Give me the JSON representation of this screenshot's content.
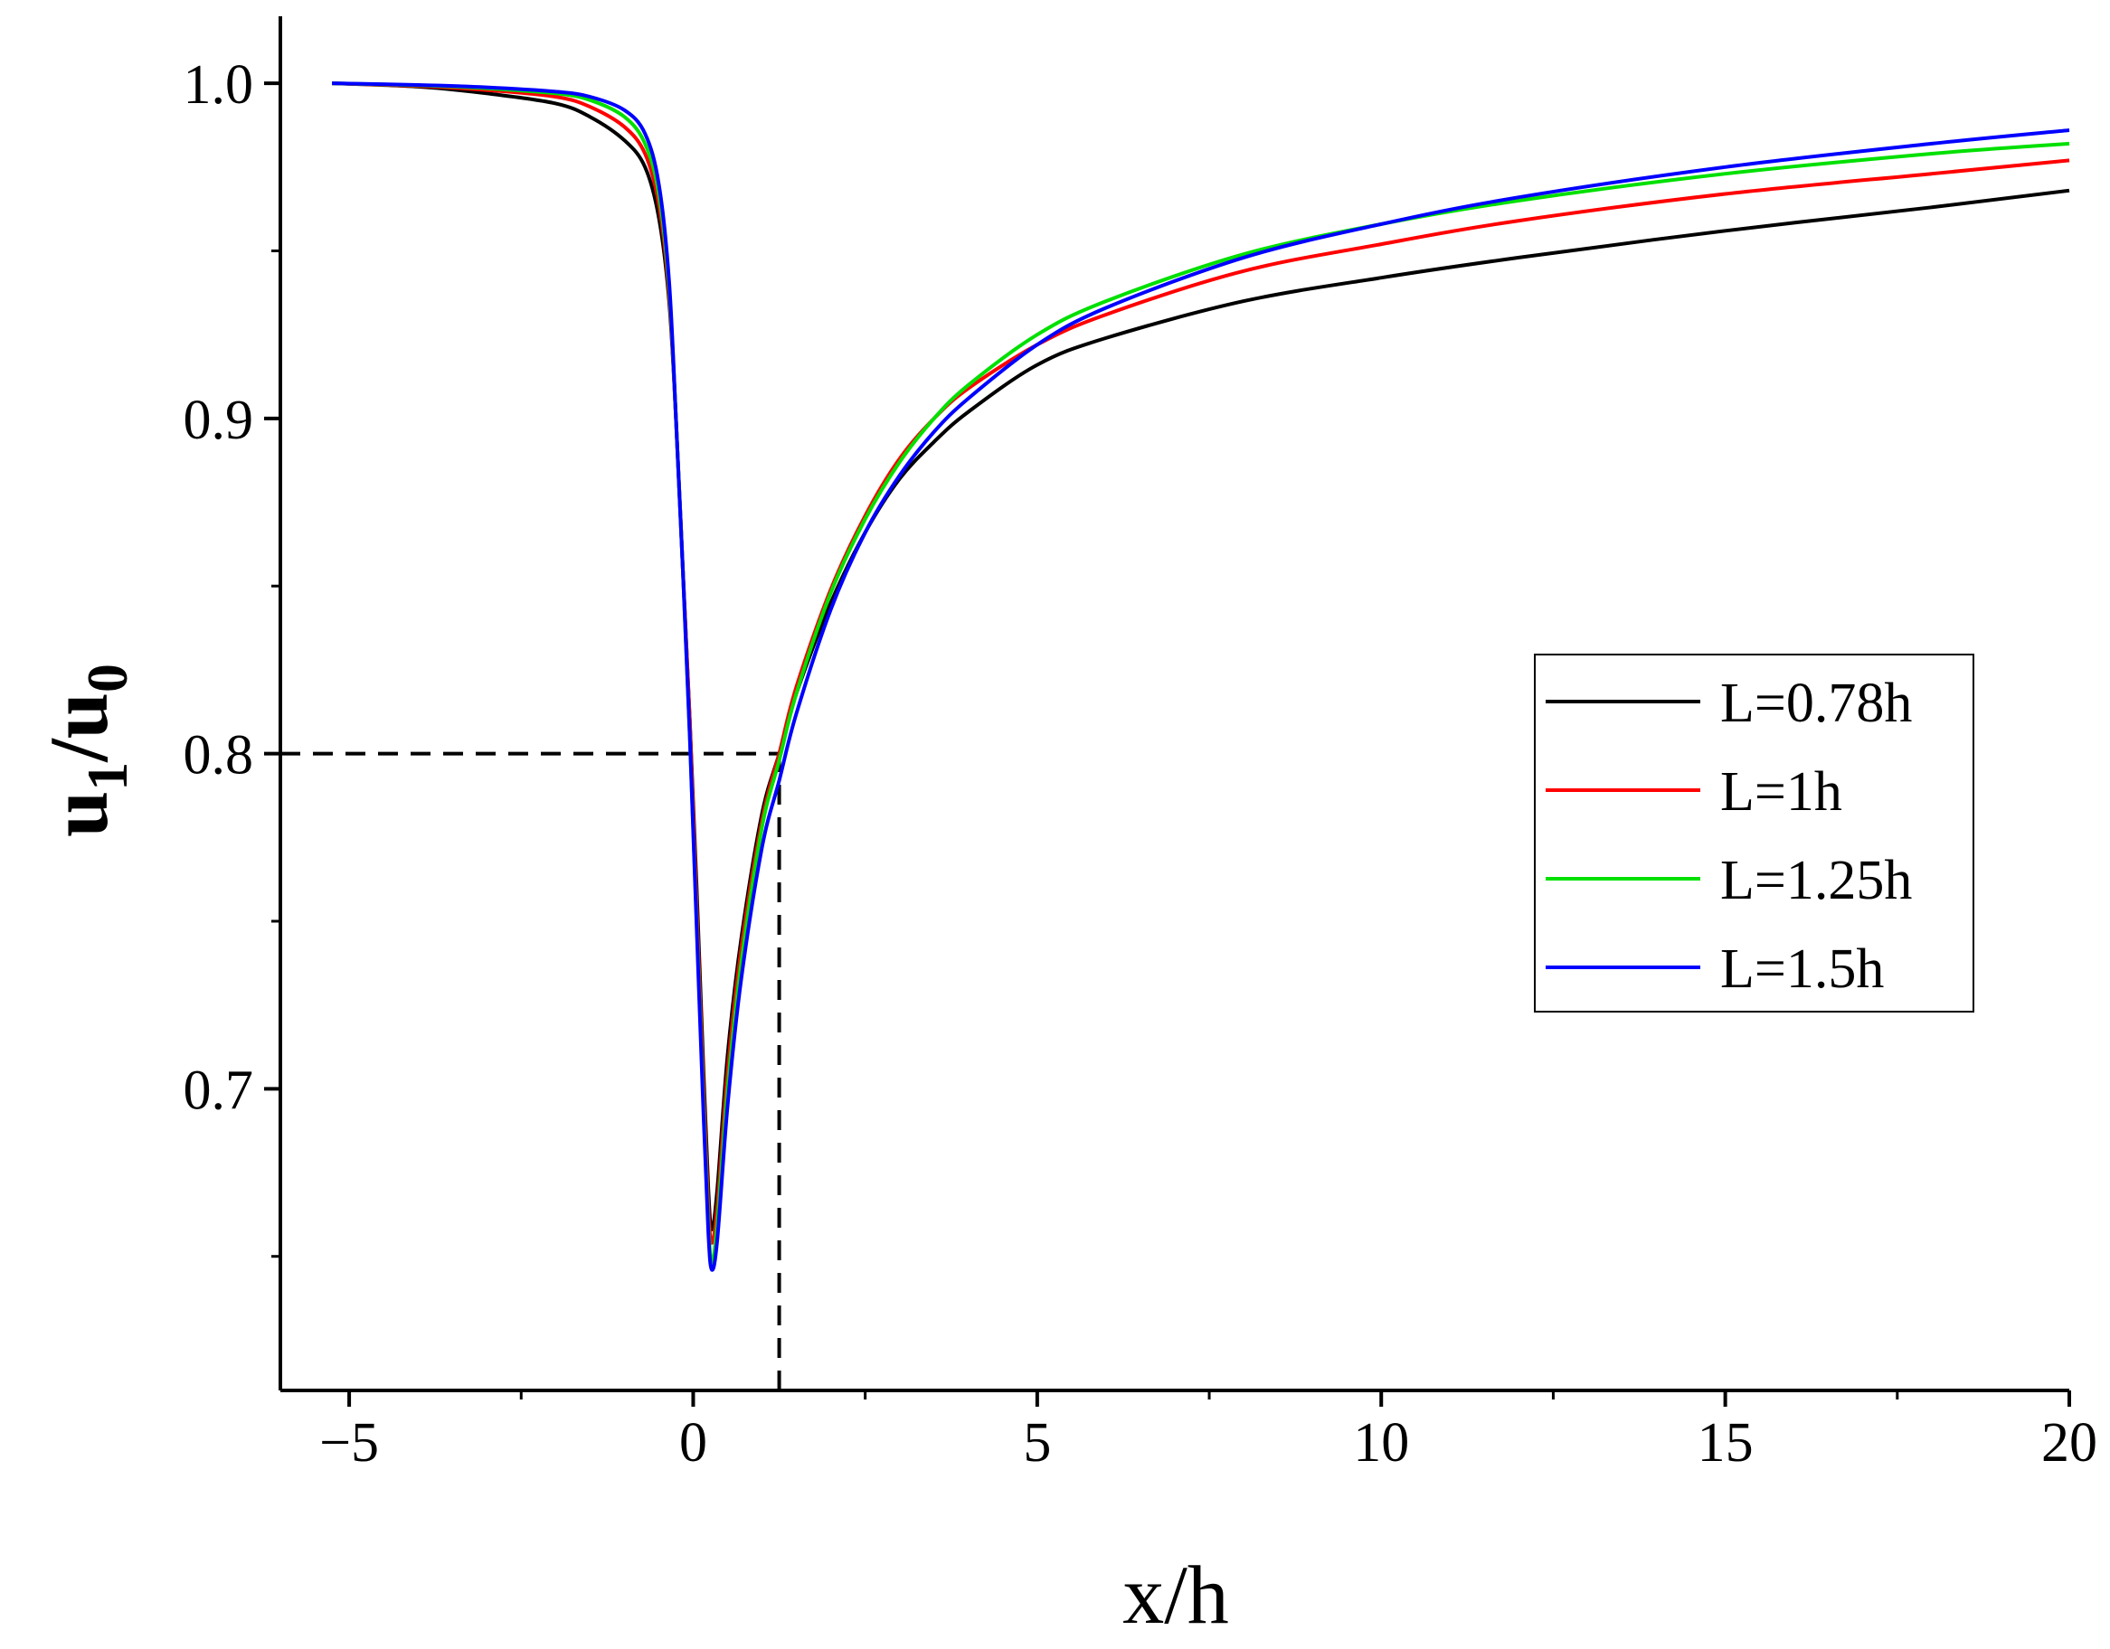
{
  "chart_data": {
    "type": "line",
    "xlabel": "x/h",
    "ylabel_main": "u",
    "ylabel_sub1": "1",
    "ylabel_mid": "/u",
    "ylabel_sub2": "0",
    "xlim": [
      -6,
      20
    ],
    "ylim": [
      0.61,
      1.02
    ],
    "x_major_ticks": [
      -5,
      0,
      5,
      10,
      15,
      20
    ],
    "x_tick_labels": [
      "−5",
      "0",
      "5",
      "10",
      "15",
      "20"
    ],
    "x_minor_ticks": [
      -2.5,
      2.5,
      7.5,
      12.5,
      17.5
    ],
    "y_major_ticks": [
      0.7,
      0.8,
      0.9,
      1.0
    ],
    "y_tick_labels": [
      "0.7",
      "0.8",
      "0.9",
      "1.0"
    ],
    "y_minor_ticks": [
      0.65,
      0.75,
      0.85,
      0.95
    ],
    "grid": false,
    "legend_position": "right-center",
    "reference_lines": {
      "horizontal": {
        "y": 0.8,
        "x_from": -6,
        "x_to": 1.25
      },
      "vertical": {
        "x": 1.25,
        "y_from": 0.61,
        "y_to": 0.8
      },
      "color": "#000000",
      "style": "dashed"
    },
    "series": [
      {
        "name": "L=0.78h",
        "color": "#000000",
        "points": [
          [
            -5.25,
            1.0
          ],
          [
            -4,
            0.999
          ],
          [
            -3,
            0.997
          ],
          [
            -2,
            0.994
          ],
          [
            -1.5,
            0.99
          ],
          [
            -1,
            0.983
          ],
          [
            -0.7,
            0.975
          ],
          [
            -0.5,
            0.96
          ],
          [
            -0.35,
            0.935
          ],
          [
            -0.25,
            0.9
          ],
          [
            -0.15,
            0.855
          ],
          [
            -0.05,
            0.81
          ],
          [
            0.05,
            0.76
          ],
          [
            0.15,
            0.705
          ],
          [
            0.22,
            0.67
          ],
          [
            0.27,
            0.658
          ],
          [
            0.35,
            0.67
          ],
          [
            0.5,
            0.71
          ],
          [
            0.7,
            0.745
          ],
          [
            1.0,
            0.782
          ],
          [
            1.25,
            0.8
          ],
          [
            1.5,
            0.818
          ],
          [
            2.0,
            0.845
          ],
          [
            2.5,
            0.866
          ],
          [
            3.0,
            0.882
          ],
          [
            3.5,
            0.893
          ],
          [
            4,
            0.902
          ],
          [
            5,
            0.916
          ],
          [
            6,
            0.924
          ],
          [
            8,
            0.935
          ],
          [
            10,
            0.942
          ],
          [
            12,
            0.948
          ],
          [
            15,
            0.956
          ],
          [
            18,
            0.963
          ],
          [
            20,
            0.968
          ]
        ]
      },
      {
        "name": "L=1h",
        "color": "#ff0000",
        "points": [
          [
            -5.25,
            1.0
          ],
          [
            -4,
            0.9992
          ],
          [
            -3,
            0.998
          ],
          [
            -2,
            0.996
          ],
          [
            -1.5,
            0.993
          ],
          [
            -1,
            0.987
          ],
          [
            -0.7,
            0.979
          ],
          [
            -0.5,
            0.964
          ],
          [
            -0.35,
            0.937
          ],
          [
            -0.25,
            0.9
          ],
          [
            -0.15,
            0.855
          ],
          [
            -0.05,
            0.81
          ],
          [
            0.05,
            0.755
          ],
          [
            0.15,
            0.7
          ],
          [
            0.22,
            0.665
          ],
          [
            0.27,
            0.654
          ],
          [
            0.35,
            0.665
          ],
          [
            0.5,
            0.705
          ],
          [
            0.7,
            0.742
          ],
          [
            1.0,
            0.78
          ],
          [
            1.25,
            0.8
          ],
          [
            1.5,
            0.82
          ],
          [
            2.0,
            0.849
          ],
          [
            2.5,
            0.871
          ],
          [
            3.0,
            0.888
          ],
          [
            3.5,
            0.9
          ],
          [
            4,
            0.909
          ],
          [
            5,
            0.922
          ],
          [
            6,
            0.931
          ],
          [
            8,
            0.944
          ],
          [
            10,
            0.952
          ],
          [
            12,
            0.959
          ],
          [
            15,
            0.967
          ],
          [
            18,
            0.973
          ],
          [
            20,
            0.977
          ]
        ]
      },
      {
        "name": "L=1.25h",
        "color": "#00e000",
        "points": [
          [
            -5.25,
            1.0
          ],
          [
            -4,
            0.9994
          ],
          [
            -3,
            0.9985
          ],
          [
            -2,
            0.997
          ],
          [
            -1.5,
            0.995
          ],
          [
            -1,
            0.99
          ],
          [
            -0.7,
            0.982
          ],
          [
            -0.5,
            0.967
          ],
          [
            -0.35,
            0.939
          ],
          [
            -0.25,
            0.9
          ],
          [
            -0.15,
            0.855
          ],
          [
            -0.05,
            0.805
          ],
          [
            0.05,
            0.75
          ],
          [
            0.15,
            0.695
          ],
          [
            0.22,
            0.66
          ],
          [
            0.27,
            0.648
          ],
          [
            0.35,
            0.66
          ],
          [
            0.5,
            0.7
          ],
          [
            0.7,
            0.738
          ],
          [
            1.0,
            0.778
          ],
          [
            1.25,
            0.798
          ],
          [
            1.5,
            0.818
          ],
          [
            2.0,
            0.848
          ],
          [
            2.5,
            0.87
          ],
          [
            3.0,
            0.887
          ],
          [
            3.5,
            0.9
          ],
          [
            4,
            0.91
          ],
          [
            5,
            0.925
          ],
          [
            6,
            0.935
          ],
          [
            8,
            0.949
          ],
          [
            10,
            0.958
          ],
          [
            12,
            0.965
          ],
          [
            15,
            0.973
          ],
          [
            18,
            0.979
          ],
          [
            20,
            0.982
          ]
        ]
      },
      {
        "name": "L=1.5h",
        "color": "#0000ff",
        "points": [
          [
            -5.25,
            1.0
          ],
          [
            -4,
            0.9995
          ],
          [
            -3,
            0.9988
          ],
          [
            -2,
            0.9975
          ],
          [
            -1.5,
            0.996
          ],
          [
            -1,
            0.992
          ],
          [
            -0.7,
            0.985
          ],
          [
            -0.5,
            0.97
          ],
          [
            -0.35,
            0.941
          ],
          [
            -0.25,
            0.9
          ],
          [
            -0.15,
            0.855
          ],
          [
            -0.05,
            0.805
          ],
          [
            0.05,
            0.748
          ],
          [
            0.15,
            0.692
          ],
          [
            0.22,
            0.657
          ],
          [
            0.27,
            0.646
          ],
          [
            0.35,
            0.655
          ],
          [
            0.5,
            0.695
          ],
          [
            0.7,
            0.733
          ],
          [
            1.0,
            0.772
          ],
          [
            1.25,
            0.792
          ],
          [
            1.5,
            0.812
          ],
          [
            2.0,
            0.843
          ],
          [
            2.5,
            0.866
          ],
          [
            3.0,
            0.883
          ],
          [
            3.5,
            0.896
          ],
          [
            4,
            0.906
          ],
          [
            5,
            0.922
          ],
          [
            6,
            0.933
          ],
          [
            8,
            0.948
          ],
          [
            10,
            0.958
          ],
          [
            12,
            0.966
          ],
          [
            15,
            0.975
          ],
          [
            18,
            0.982
          ],
          [
            20,
            0.986
          ]
        ]
      }
    ]
  }
}
